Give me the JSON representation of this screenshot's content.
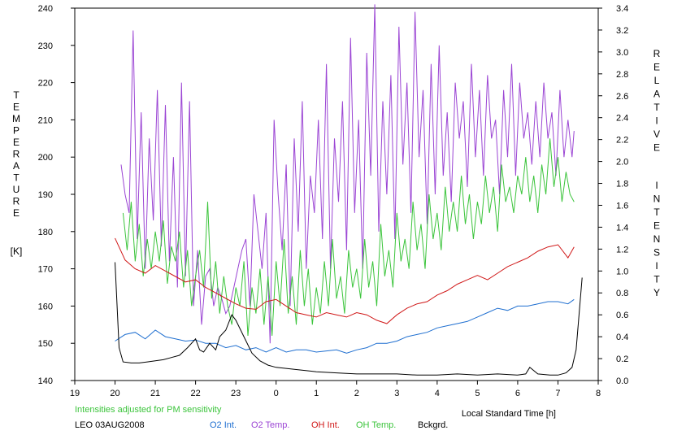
{
  "chart_data": {
    "type": "line",
    "left_axis_label": "TEMPERATURE",
    "left_axis_unit": "[K]",
    "right_axis_label": "RELATIVE INTENSITY",
    "x_label": "Local Standard Time [h]",
    "note": "Intensities adjusted for PM sensitivity",
    "station": "LEO 03AUG2008",
    "grid": false,
    "x_ticks": [
      {
        "pos": 19,
        "label": "19"
      },
      {
        "pos": 20,
        "label": "20"
      },
      {
        "pos": 21,
        "label": "21"
      },
      {
        "pos": 22,
        "label": "22"
      },
      {
        "pos": 23,
        "label": "23"
      },
      {
        "pos": 24,
        "label": "0"
      },
      {
        "pos": 25,
        "label": "1"
      },
      {
        "pos": 26,
        "label": "2"
      },
      {
        "pos": 27,
        "label": "3"
      },
      {
        "pos": 28,
        "label": "4"
      },
      {
        "pos": 29,
        "label": "5"
      },
      {
        "pos": 30,
        "label": "6"
      },
      {
        "pos": 31,
        "label": "7"
      },
      {
        "pos": 32,
        "label": "8"
      }
    ],
    "x_range": [
      19,
      32
    ],
    "y_left_range": [
      140,
      240
    ],
    "y_left_ticks": [
      "140",
      "150",
      "160",
      "170",
      "180",
      "190",
      "200",
      "210",
      "220",
      "230",
      "240"
    ],
    "y_right_range": [
      0.0,
      3.4
    ],
    "y_right_ticks": [
      "0.0",
      "0.2",
      "0.4",
      "0.6",
      "0.8",
      "1.0",
      "1.2",
      "1.4",
      "1.6",
      "1.8",
      "2.0",
      "2.2",
      "2.4",
      "2.6",
      "2.8",
      "3.0",
      "3.2",
      "3.4"
    ],
    "series": [
      {
        "name": "O2 Int.",
        "color": "#1f6fd0",
        "axis": "right",
        "x": [
          20.0,
          20.25,
          20.5,
          20.75,
          21.0,
          21.25,
          21.5,
          21.75,
          22.0,
          22.25,
          22.5,
          22.75,
          23.0,
          23.25,
          23.5,
          23.75,
          24.0,
          24.25,
          24.5,
          24.75,
          25.0,
          25.25,
          25.5,
          25.75,
          26.0,
          26.25,
          26.5,
          26.75,
          27.0,
          27.25,
          27.5,
          27.75,
          28.0,
          28.25,
          28.5,
          28.75,
          29.0,
          29.25,
          29.5,
          29.75,
          30.0,
          30.25,
          30.5,
          30.75,
          31.0,
          31.25,
          31.4
        ],
        "y": [
          0.36,
          0.42,
          0.44,
          0.38,
          0.46,
          0.4,
          0.38,
          0.36,
          0.37,
          0.34,
          0.34,
          0.3,
          0.32,
          0.28,
          0.3,
          0.26,
          0.3,
          0.26,
          0.28,
          0.28,
          0.26,
          0.27,
          0.28,
          0.25,
          0.28,
          0.3,
          0.34,
          0.34,
          0.36,
          0.4,
          0.42,
          0.44,
          0.48,
          0.5,
          0.52,
          0.54,
          0.58,
          0.62,
          0.66,
          0.64,
          0.68,
          0.68,
          0.7,
          0.72,
          0.72,
          0.7,
          0.74
        ]
      },
      {
        "name": "O2 Temp.",
        "color": "#9b45d4",
        "axis": "left",
        "x": [
          20.15,
          20.25,
          20.35,
          20.45,
          20.55,
          20.65,
          20.75,
          20.85,
          20.95,
          21.05,
          21.15,
          21.25,
          21.35,
          21.45,
          21.55,
          21.65,
          21.75,
          21.85,
          21.95,
          22.05,
          22.15,
          22.25,
          22.35,
          22.45,
          22.55,
          22.65,
          22.75,
          22.85,
          22.95,
          23.05,
          23.15,
          23.25,
          23.35,
          23.45,
          23.55,
          23.65,
          23.75,
          23.85,
          23.95,
          24.05,
          24.15,
          24.25,
          24.35,
          24.45,
          24.55,
          24.65,
          24.75,
          24.85,
          24.95,
          25.05,
          25.15,
          25.25,
          25.35,
          25.45,
          25.55,
          25.65,
          25.75,
          25.85,
          25.95,
          26.05,
          26.15,
          26.25,
          26.35,
          26.45,
          26.55,
          26.65,
          26.75,
          26.85,
          26.95,
          27.05,
          27.15,
          27.25,
          27.35,
          27.45,
          27.55,
          27.65,
          27.75,
          27.85,
          27.95,
          28.05,
          28.15,
          28.25,
          28.35,
          28.45,
          28.55,
          28.65,
          28.75,
          28.85,
          28.95,
          29.05,
          29.15,
          29.25,
          29.35,
          29.45,
          29.55,
          29.65,
          29.75,
          29.85,
          29.95,
          30.05,
          30.15,
          30.25,
          30.35,
          30.45,
          30.55,
          30.65,
          30.75,
          30.85,
          30.95,
          31.05,
          31.15,
          31.25,
          31.35,
          31.4
        ],
        "y": [
          198,
          190,
          185,
          234,
          178,
          212,
          170,
          205,
          183,
          218,
          176,
          214,
          172,
          200,
          165,
          220,
          168,
          215,
          160,
          175,
          155,
          168,
          170,
          160,
          165,
          162,
          158,
          160,
          165,
          170,
          175,
          178,
          160,
          190,
          180,
          170,
          185,
          150,
          210,
          190,
          175,
          198,
          160,
          205,
          180,
          215,
          170,
          195,
          185,
          210,
          178,
          225,
          170,
          205,
          188,
          215,
          175,
          232,
          185,
          210,
          170,
          228,
          195,
          241,
          180,
          215,
          190,
          222,
          178,
          235,
          198,
          220,
          185,
          239,
          200,
          218,
          182,
          225,
          190,
          230,
          195,
          212,
          188,
          220,
          205,
          215,
          192,
          225,
          200,
          218,
          195,
          222,
          205,
          210,
          190,
          218,
          200,
          225,
          195,
          220,
          205,
          212,
          198,
          215,
          200,
          220,
          205,
          212,
          195,
          218,
          200,
          210,
          200,
          207
        ]
      },
      {
        "name": "OH Int.",
        "color": "#d01818",
        "axis": "right",
        "x": [
          20.0,
          20.25,
          20.5,
          20.75,
          21.0,
          21.25,
          21.5,
          21.75,
          22.0,
          22.25,
          22.5,
          22.75,
          23.0,
          23.25,
          23.5,
          23.75,
          24.0,
          24.25,
          24.5,
          24.75,
          25.0,
          25.25,
          25.5,
          25.75,
          26.0,
          26.25,
          26.5,
          26.75,
          27.0,
          27.25,
          27.5,
          27.75,
          28.0,
          28.25,
          28.5,
          28.75,
          29.0,
          29.25,
          29.5,
          29.75,
          30.0,
          30.25,
          30.5,
          30.75,
          31.0,
          31.25,
          31.4
        ],
        "y": [
          1.3,
          1.1,
          1.02,
          0.98,
          1.05,
          1.0,
          0.95,
          0.9,
          0.92,
          0.85,
          0.8,
          0.75,
          0.7,
          0.66,
          0.65,
          0.72,
          0.74,
          0.68,
          0.62,
          0.6,
          0.58,
          0.62,
          0.6,
          0.58,
          0.62,
          0.6,
          0.55,
          0.52,
          0.6,
          0.66,
          0.7,
          0.72,
          0.78,
          0.82,
          0.88,
          0.92,
          0.96,
          0.92,
          0.98,
          1.04,
          1.08,
          1.12,
          1.18,
          1.22,
          1.24,
          1.12,
          1.22
        ]
      },
      {
        "name": "OH Temp.",
        "color": "#3bc43b",
        "axis": "left",
        "x": [
          20.2,
          20.3,
          20.4,
          20.5,
          20.6,
          20.7,
          20.8,
          20.9,
          21.0,
          21.1,
          21.2,
          21.3,
          21.4,
          21.5,
          21.6,
          21.7,
          21.8,
          21.9,
          22.0,
          22.1,
          22.2,
          22.3,
          22.4,
          22.5,
          22.6,
          22.7,
          22.8,
          22.9,
          23.0,
          23.1,
          23.2,
          23.3,
          23.4,
          23.5,
          23.6,
          23.7,
          23.8,
          23.9,
          24.0,
          24.1,
          24.2,
          24.3,
          24.4,
          24.5,
          24.6,
          24.7,
          24.8,
          24.9,
          25.0,
          25.1,
          25.2,
          25.3,
          25.4,
          25.5,
          25.6,
          25.7,
          25.8,
          25.9,
          26.0,
          26.1,
          26.2,
          26.3,
          26.4,
          26.5,
          26.6,
          26.7,
          26.8,
          26.9,
          27.0,
          27.1,
          27.2,
          27.3,
          27.4,
          27.5,
          27.6,
          27.7,
          27.8,
          27.9,
          28.0,
          28.1,
          28.2,
          28.3,
          28.4,
          28.5,
          28.6,
          28.7,
          28.8,
          28.9,
          29.0,
          29.1,
          29.2,
          29.3,
          29.4,
          29.5,
          29.6,
          29.7,
          29.8,
          29.9,
          30.0,
          30.1,
          30.2,
          30.3,
          30.4,
          30.5,
          30.6,
          30.7,
          30.8,
          30.9,
          31.0,
          31.1,
          31.2,
          31.3,
          31.4
        ],
        "y": [
          185,
          175,
          188,
          172,
          182,
          168,
          178,
          170,
          180,
          172,
          183,
          166,
          176,
          172,
          180,
          165,
          175,
          160,
          168,
          175,
          165,
          188,
          162,
          172,
          158,
          168,
          160,
          155,
          165,
          160,
          172,
          152,
          165,
          158,
          170,
          155,
          168,
          152,
          172,
          160,
          178,
          158,
          168,
          155,
          175,
          160,
          170,
          155,
          165,
          158,
          172,
          160,
          178,
          162,
          168,
          158,
          175,
          165,
          170,
          162,
          178,
          165,
          172,
          160,
          182,
          168,
          175,
          165,
          185,
          172,
          178,
          170,
          188,
          175,
          182,
          170,
          190,
          178,
          185,
          175,
          192,
          180,
          188,
          180,
          195,
          182,
          190,
          178,
          188,
          182,
          195,
          185,
          192,
          180,
          198,
          188,
          192,
          185,
          195,
          190,
          200,
          188,
          195,
          185,
          198,
          190,
          205,
          192,
          200,
          188,
          196,
          190,
          188
        ]
      },
      {
        "name": "Bckgrd.",
        "color": "#000000",
        "axis": "right",
        "x": [
          20.0,
          20.1,
          20.2,
          20.4,
          20.6,
          20.8,
          21.0,
          21.2,
          21.4,
          21.6,
          21.8,
          22.0,
          22.1,
          22.2,
          22.35,
          22.5,
          22.6,
          22.75,
          22.9,
          23.0,
          23.2,
          23.4,
          23.6,
          23.8,
          24.0,
          24.5,
          25.0,
          25.5,
          26.0,
          26.5,
          27.0,
          27.5,
          28.0,
          28.5,
          29.0,
          29.5,
          30.0,
          30.2,
          30.3,
          30.5,
          30.8,
          31.0,
          31.2,
          31.35,
          31.45,
          31.6
        ],
        "y": [
          1.08,
          0.3,
          0.17,
          0.16,
          0.16,
          0.17,
          0.18,
          0.19,
          0.21,
          0.23,
          0.3,
          0.38,
          0.28,
          0.26,
          0.34,
          0.28,
          0.4,
          0.46,
          0.6,
          0.55,
          0.4,
          0.25,
          0.18,
          0.14,
          0.12,
          0.1,
          0.08,
          0.07,
          0.06,
          0.06,
          0.06,
          0.05,
          0.05,
          0.06,
          0.05,
          0.06,
          0.05,
          0.06,
          0.12,
          0.06,
          0.05,
          0.05,
          0.07,
          0.12,
          0.28,
          0.94
        ]
      }
    ]
  }
}
